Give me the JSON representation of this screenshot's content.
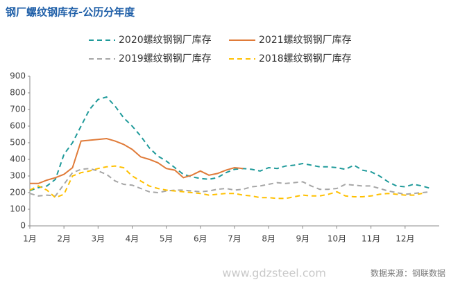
{
  "chart_data": {
    "type": "line",
    "title": "钢厂螺纹钢库存-公历分年度",
    "source": "数据来源：钢联数据",
    "watermark": "www.gdzsteel.com",
    "x": [
      1,
      1.25,
      1.5,
      1.75,
      2,
      2.25,
      2.5,
      2.75,
      3,
      3.25,
      3.5,
      3.75,
      4,
      4.25,
      4.5,
      4.75,
      5,
      5.25,
      5.5,
      5.75,
      6,
      6.25,
      6.5,
      6.75,
      7,
      7.25,
      7.5,
      7.75,
      8,
      8.25,
      8.5,
      8.75,
      9,
      9.25,
      9.5,
      9.75,
      10,
      10.25,
      10.5,
      10.75,
      11,
      11.25,
      11.5,
      11.75,
      12,
      12.25,
      12.5,
      12.75
    ],
    "xlim": [
      1,
      13
    ],
    "xticks": [
      {
        "value": 1,
        "label": "1月"
      },
      {
        "value": 2,
        "label": "2月"
      },
      {
        "value": 3,
        "label": "3月"
      },
      {
        "value": 4,
        "label": "4月"
      },
      {
        "value": 5,
        "label": "5月"
      },
      {
        "value": 6,
        "label": "6月"
      },
      {
        "value": 7,
        "label": "7月"
      },
      {
        "value": 8,
        "label": "8月"
      },
      {
        "value": 9,
        "label": "9月"
      },
      {
        "value": 10,
        "label": "10月"
      },
      {
        "value": 11,
        "label": "11月"
      },
      {
        "value": 12,
        "label": "12月"
      }
    ],
    "ylim": [
      0,
      900
    ],
    "yticks": [
      0,
      100,
      200,
      300,
      400,
      500,
      600,
      700,
      800,
      900
    ],
    "series": [
      {
        "name": "2020螺纹钢钢厂库存",
        "color": "#1f9a9a",
        "dash": true,
        "values": [
          212,
          230,
          240,
          280,
          430,
          500,
          600,
          700,
          760,
          775,
          720,
          650,
          600,
          540,
          470,
          420,
          390,
          350,
          310,
          295,
          285,
          280,
          290,
          320,
          340,
          345,
          340,
          330,
          350,
          345,
          360,
          365,
          375,
          365,
          355,
          355,
          350,
          340,
          365,
          335,
          325,
          300,
          265,
          240,
          235,
          250,
          240,
          225
        ]
      },
      {
        "name": "2021螺纹钢钢厂库存",
        "color": "#e07b39",
        "dash": false,
        "values": [
          255,
          255,
          275,
          290,
          310,
          350,
          510,
          515,
          520,
          525,
          510,
          490,
          460,
          415,
          400,
          380,
          345,
          335,
          290,
          305,
          330,
          305,
          315,
          335,
          350,
          345,
          null,
          null,
          null,
          null,
          null,
          null,
          null,
          null,
          null,
          null,
          null,
          null,
          null,
          null,
          null,
          null,
          null,
          null,
          null,
          null,
          null,
          null
        ]
      },
      {
        "name": "2019螺纹钢钢厂库存",
        "color": "#a6a6a6",
        "dash": true,
        "values": [
          195,
          180,
          185,
          180,
          250,
          320,
          340,
          345,
          330,
          310,
          270,
          250,
          245,
          225,
          205,
          200,
          210,
          215,
          215,
          210,
          205,
          210,
          220,
          225,
          215,
          220,
          235,
          240,
          250,
          260,
          255,
          260,
          265,
          240,
          220,
          220,
          225,
          250,
          245,
          240,
          240,
          225,
          210,
          200,
          190,
          195,
          200,
          205
        ]
      },
      {
        "name": "2018螺纹钢钢厂库存",
        "color": "#ffc000",
        "dash": true,
        "values": [
          215,
          240,
          215,
          170,
          190,
          300,
          320,
          330,
          345,
          355,
          360,
          350,
          300,
          270,
          240,
          225,
          215,
          210,
          205,
          200,
          195,
          185,
          190,
          195,
          195,
          185,
          180,
          170,
          170,
          165,
          165,
          175,
          185,
          180,
          180,
          190,
          205,
          180,
          175,
          175,
          180,
          190,
          195,
          190,
          185,
          185,
          195,
          null
        ]
      }
    ]
  }
}
